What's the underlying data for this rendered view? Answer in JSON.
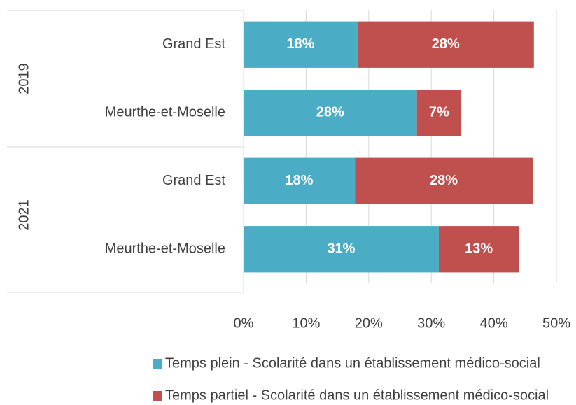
{
  "chart_data": {
    "type": "stacked-barh",
    "groups": [
      {
        "name": "2019",
        "categories": [
          "Grand Est",
          "Meurthe-et-Moselle"
        ]
      },
      {
        "name": "2021",
        "categories": [
          "Grand Est",
          "Meurthe-et-Moselle"
        ]
      }
    ],
    "series": [
      {
        "name": "Temps plein - Scolarité dans un établissement médico-social",
        "color": "#4bacc6",
        "values": [
          18.2,
          27.7,
          17.8,
          31.2
        ],
        "value_labels": [
          "18%",
          "28%",
          "18%",
          "31%"
        ]
      },
      {
        "name": "Temps partiel  - Scolarité dans un établissement médico-social",
        "color": "#c0504d",
        "values": [
          28.2,
          7.1,
          28.4,
          12.8
        ],
        "value_labels": [
          "28%",
          "7%",
          "28%",
          "13%"
        ]
      }
    ],
    "xlim": [
      0,
      50
    ],
    "xticks": [
      {
        "value": 0,
        "label": "0%"
      },
      {
        "value": 10,
        "label": "10%"
      },
      {
        "value": 20,
        "label": "20%"
      },
      {
        "value": 30,
        "label": "30%"
      },
      {
        "value": 40,
        "label": "40%"
      },
      {
        "value": 50,
        "label": "50%"
      }
    ],
    "grid": true,
    "legend": "bottom"
  }
}
